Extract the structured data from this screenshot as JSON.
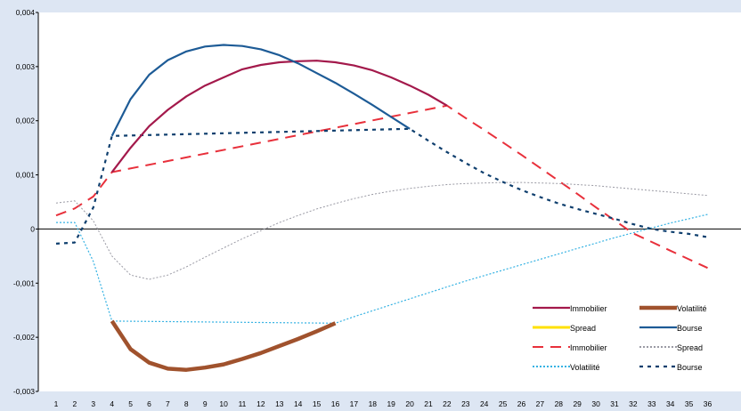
{
  "chart_data": {
    "type": "line",
    "title": "",
    "xlabel": "",
    "ylabel": "",
    "x": [
      1,
      2,
      3,
      4,
      5,
      6,
      7,
      8,
      9,
      10,
      11,
      12,
      13,
      14,
      15,
      16,
      17,
      18,
      19,
      20,
      21,
      22,
      23,
      24,
      25,
      26,
      27,
      28,
      29,
      30,
      31,
      32,
      33,
      34,
      35,
      36
    ],
    "xlim": [
      1,
      36
    ],
    "ylim": [
      -0.003,
      0.004
    ],
    "y_ticks": [
      {
        "value": 0.004,
        "label": "0,004"
      },
      {
        "value": 0.003,
        "label": "0,003"
      },
      {
        "value": 0.002,
        "label": "0,002"
      },
      {
        "value": 0.001,
        "label": "0,001"
      },
      {
        "value": 0,
        "label": "0"
      },
      {
        "value": -0.001,
        "label": "-0,001"
      },
      {
        "value": -0.002,
        "label": "-0,002"
      },
      {
        "value": -0.003,
        "label": "-0,003"
      }
    ],
    "x_tick_labels": [
      "1",
      "2",
      "3",
      "4",
      "5",
      "6",
      "7",
      "8",
      "9",
      "10",
      "11",
      "12",
      "13",
      "14",
      "15",
      "16",
      "17",
      "18",
      "19",
      "20",
      "21",
      "22",
      "23",
      "24",
      "25",
      "26",
      "27",
      "28",
      "29",
      "30",
      "31",
      "32",
      "33",
      "34",
      "35",
      "36"
    ],
    "zero_line": true,
    "grid": false,
    "legend_position": "bottom-right",
    "legend_columns": 2,
    "series": [
      {
        "name": "Immobilier",
        "style": "solid",
        "color": "#a3194b",
        "width": 2.2,
        "points": [
          [
            4,
            0.00105
          ],
          [
            5,
            0.0015
          ],
          [
            6,
            0.0019
          ],
          [
            7,
            0.0022
          ],
          [
            8,
            0.00245
          ],
          [
            9,
            0.00265
          ],
          [
            10,
            0.0028
          ],
          [
            11,
            0.00295
          ],
          [
            12,
            0.00303
          ],
          [
            13,
            0.00308
          ],
          [
            14,
            0.0031
          ],
          [
            15,
            0.00311
          ],
          [
            16,
            0.00308
          ],
          [
            17,
            0.00302
          ],
          [
            18,
            0.00293
          ],
          [
            19,
            0.0028
          ],
          [
            20,
            0.00265
          ],
          [
            21,
            0.00248
          ],
          [
            22,
            0.00228
          ]
        ]
      },
      {
        "name": "Volatilité",
        "style": "solid",
        "color": "#a0522d",
        "width": 4.5,
        "points": [
          [
            4,
            -0.0017
          ],
          [
            5,
            -0.00222
          ],
          [
            6,
            -0.00247
          ],
          [
            7,
            -0.00258
          ],
          [
            8,
            -0.0026
          ],
          [
            9,
            -0.00256
          ],
          [
            10,
            -0.0025
          ],
          [
            11,
            -0.0024
          ],
          [
            12,
            -0.00229
          ],
          [
            13,
            -0.00216
          ],
          [
            14,
            -0.00203
          ],
          [
            15,
            -0.00189
          ],
          [
            16,
            -0.00174
          ]
        ]
      },
      {
        "name": "Spread",
        "style": "solid",
        "color": "#ffe100",
        "width": 3,
        "points": []
      },
      {
        "name": "Bourse",
        "style": "solid",
        "color": "#1d5b96",
        "width": 2.2,
        "points": [
          [
            4,
            0.00172
          ],
          [
            5,
            0.0024
          ],
          [
            6,
            0.00285
          ],
          [
            7,
            0.00312
          ],
          [
            8,
            0.00328
          ],
          [
            9,
            0.00337
          ],
          [
            10,
            0.0034
          ],
          [
            11,
            0.00338
          ],
          [
            12,
            0.00332
          ],
          [
            13,
            0.00321
          ],
          [
            14,
            0.00306
          ],
          [
            15,
            0.00288
          ],
          [
            16,
            0.0027
          ],
          [
            17,
            0.0025
          ],
          [
            18,
            0.00229
          ],
          [
            19,
            0.00207
          ],
          [
            20,
            0.00185
          ]
        ]
      },
      {
        "name": "Immobilier",
        "style": "dashed",
        "color": "#e8303b",
        "width": 2,
        "points": [
          [
            1,
            0.00025
          ],
          [
            2,
            0.00038
          ],
          [
            3,
            0.0006
          ],
          [
            4,
            0.00105
          ],
          [
            22,
            0.00228
          ],
          [
            23,
            0.00205
          ],
          [
            24,
            0.00183
          ],
          [
            25,
            0.0016
          ],
          [
            26,
            0.00137
          ],
          [
            27,
            0.00113
          ],
          [
            28,
            0.00089
          ],
          [
            29,
            0.00065
          ],
          [
            30,
            0.0004
          ],
          [
            31,
            0.00016
          ],
          [
            32,
            -8e-05
          ],
          [
            33,
            -0.00024
          ],
          [
            34,
            -0.0004
          ],
          [
            35,
            -0.00056
          ],
          [
            36,
            -0.00072
          ]
        ]
      },
      {
        "name": "Spread",
        "style": "dotted",
        "color": "#9a9aa4",
        "width": 1,
        "points": [
          [
            1,
            0.00048
          ],
          [
            2,
            0.00052
          ],
          [
            3,
            0.00015
          ],
          [
            4,
            -0.0005
          ],
          [
            5,
            -0.00085
          ],
          [
            6,
            -0.00093
          ],
          [
            7,
            -0.00085
          ],
          [
            8,
            -0.0007
          ],
          [
            9,
            -0.00052
          ],
          [
            10,
            -0.00035
          ],
          [
            11,
            -0.00018
          ],
          [
            12,
            -3e-05
          ],
          [
            13,
            0.00012
          ],
          [
            14,
            0.00025
          ],
          [
            15,
            0.00037
          ],
          [
            16,
            0.00047
          ],
          [
            17,
            0.00056
          ],
          [
            18,
            0.00064
          ],
          [
            19,
            0.0007
          ],
          [
            20,
            0.00075
          ],
          [
            21,
            0.00079
          ],
          [
            22,
            0.00082
          ],
          [
            23,
            0.00084
          ],
          [
            24,
            0.00085
          ],
          [
            25,
            0.00086
          ],
          [
            26,
            0.00086
          ],
          [
            27,
            0.00085
          ],
          [
            28,
            0.00084
          ],
          [
            29,
            0.00082
          ],
          [
            30,
            0.0008
          ],
          [
            31,
            0.00077
          ],
          [
            32,
            0.00074
          ],
          [
            33,
            0.00071
          ],
          [
            34,
            0.00068
          ],
          [
            35,
            0.00065
          ],
          [
            36,
            0.00062
          ]
        ]
      },
      {
        "name": "Volatilité",
        "style": "dotted",
        "color": "#35b2e3",
        "width": 1.2,
        "points": [
          [
            1,
            0.00012
          ],
          [
            2,
            0.00012
          ],
          [
            3,
            -0.0006
          ],
          [
            4,
            -0.0017
          ],
          [
            16,
            -0.00174
          ],
          [
            17,
            -0.00162
          ],
          [
            18,
            -0.00151
          ],
          [
            19,
            -0.0014
          ],
          [
            20,
            -0.00129
          ],
          [
            21,
            -0.00118
          ],
          [
            22,
            -0.00107
          ],
          [
            23,
            -0.00096
          ],
          [
            24,
            -0.00086
          ],
          [
            25,
            -0.00076
          ],
          [
            26,
            -0.00066
          ],
          [
            27,
            -0.00056
          ],
          [
            28,
            -0.00046
          ],
          [
            29,
            -0.00036
          ],
          [
            30,
            -0.00026
          ],
          [
            31,
            -0.00016
          ],
          [
            32,
            -7e-05
          ],
          [
            33,
            2e-05
          ],
          [
            34,
            0.00011
          ],
          [
            35,
            0.00019
          ],
          [
            36,
            0.00027
          ]
        ]
      },
      {
        "name": "Bourse",
        "style": "dashed-heavy",
        "color": "#0f3f6e",
        "width": 2.2,
        "points": [
          [
            1,
            -0.00027
          ],
          [
            2,
            -0.00025
          ],
          [
            3,
            0.0004
          ],
          [
            4,
            0.00172
          ],
          [
            20,
            0.00185
          ],
          [
            21,
            0.00163
          ],
          [
            22,
            0.00142
          ],
          [
            23,
            0.00122
          ],
          [
            24,
            0.00103
          ],
          [
            25,
            0.00087
          ],
          [
            26,
            0.00072
          ],
          [
            27,
            0.00059
          ],
          [
            28,
            0.00047
          ],
          [
            29,
            0.00037
          ],
          [
            30,
            0.00028
          ],
          [
            31,
            0.00019
          ],
          [
            32,
            9e-05
          ],
          [
            33,
            0
          ],
          [
            34,
            -5e-05
          ],
          [
            35,
            -9e-05
          ],
          [
            36,
            -0.00015
          ]
        ]
      }
    ]
  }
}
